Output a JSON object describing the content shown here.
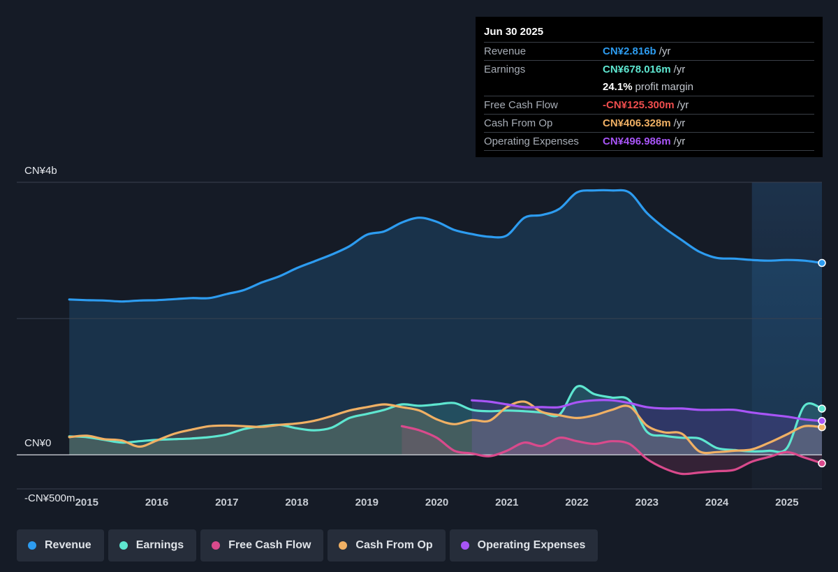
{
  "tooltip": {
    "date": "Jun 30 2025",
    "rows": [
      {
        "label": "Revenue",
        "value": "CN¥2.816b",
        "unit": "/yr",
        "color": "#2d9cf0"
      },
      {
        "label": "Earnings",
        "value": "CN¥678.016m",
        "unit": "/yr",
        "color": "#5ee6d0"
      },
      {
        "label": "",
        "value": "24.1%",
        "unit": "profit margin",
        "color": "#ffffff"
      },
      {
        "label": "Free Cash Flow",
        "value": "-CN¥125.300m",
        "unit": "/yr",
        "color": "#ef4d4d"
      },
      {
        "label": "Cash From Op",
        "value": "CN¥406.328m",
        "unit": "/yr",
        "color": "#f0b064"
      },
      {
        "label": "Operating Expenses",
        "value": "CN¥496.986m",
        "unit": "/yr",
        "color": "#a855f7"
      }
    ]
  },
  "legend": [
    {
      "label": "Revenue",
      "color": "#2d9cf0"
    },
    {
      "label": "Earnings",
      "color": "#5ee6d0"
    },
    {
      "label": "Free Cash Flow",
      "color": "#d94a8c"
    },
    {
      "label": "Cash From Op",
      "color": "#f0b064"
    },
    {
      "label": "Operating Expenses",
      "color": "#a855f7"
    }
  ],
  "chart_data": {
    "type": "line",
    "title": "",
    "xlabel": "",
    "ylabel": "",
    "y_tick_labels": [
      "CN¥4b",
      "CN¥0",
      "-CN¥500m"
    ],
    "ylim": [
      -500,
      4000
    ],
    "xlim": [
      2014.0,
      2025.5
    ],
    "x_ticks": [
      2015,
      2016,
      2017,
      2018,
      2019,
      2020,
      2021,
      2022,
      2023,
      2024,
      2025
    ],
    "highlight_from": 2024.5,
    "grid": true,
    "units": "CN¥ millions",
    "series": [
      {
        "name": "Revenue",
        "color": "#2d9cf0",
        "area": true,
        "points": [
          [
            2014.75,
            2280
          ],
          [
            2015,
            2270
          ],
          [
            2015.25,
            2265
          ],
          [
            2015.5,
            2250
          ],
          [
            2015.75,
            2265
          ],
          [
            2016,
            2270
          ],
          [
            2016.25,
            2285
          ],
          [
            2016.5,
            2300
          ],
          [
            2016.75,
            2300
          ],
          [
            2017,
            2360
          ],
          [
            2017.25,
            2420
          ],
          [
            2017.5,
            2530
          ],
          [
            2017.75,
            2620
          ],
          [
            2018,
            2740
          ],
          [
            2018.25,
            2840
          ],
          [
            2018.5,
            2940
          ],
          [
            2018.75,
            3060
          ],
          [
            2019,
            3230
          ],
          [
            2019.25,
            3280
          ],
          [
            2019.5,
            3410
          ],
          [
            2019.75,
            3480
          ],
          [
            2020,
            3420
          ],
          [
            2020.25,
            3300
          ],
          [
            2020.5,
            3240
          ],
          [
            2020.75,
            3200
          ],
          [
            2021,
            3220
          ],
          [
            2021.25,
            3480
          ],
          [
            2021.5,
            3520
          ],
          [
            2021.75,
            3610
          ],
          [
            2022,
            3850
          ],
          [
            2022.25,
            3880
          ],
          [
            2022.5,
            3880
          ],
          [
            2022.75,
            3850
          ],
          [
            2023,
            3550
          ],
          [
            2023.25,
            3330
          ],
          [
            2023.5,
            3150
          ],
          [
            2023.75,
            2980
          ],
          [
            2024,
            2890
          ],
          [
            2024.25,
            2880
          ],
          [
            2024.5,
            2860
          ],
          [
            2024.75,
            2850
          ],
          [
            2025,
            2860
          ],
          [
            2025.25,
            2850
          ],
          [
            2025.5,
            2816
          ]
        ]
      },
      {
        "name": "Earnings",
        "color": "#5ee6d0",
        "area": true,
        "points": [
          [
            2014.75,
            270
          ],
          [
            2015,
            260
          ],
          [
            2015.25,
            220
          ],
          [
            2015.5,
            180
          ],
          [
            2015.75,
            200
          ],
          [
            2016,
            220
          ],
          [
            2016.25,
            230
          ],
          [
            2016.5,
            240
          ],
          [
            2016.75,
            260
          ],
          [
            2017,
            300
          ],
          [
            2017.25,
            380
          ],
          [
            2017.5,
            420
          ],
          [
            2017.75,
            440
          ],
          [
            2018,
            390
          ],
          [
            2018.25,
            360
          ],
          [
            2018.5,
            400
          ],
          [
            2018.75,
            540
          ],
          [
            2019,
            600
          ],
          [
            2019.25,
            660
          ],
          [
            2019.5,
            740
          ],
          [
            2019.75,
            720
          ],
          [
            2020,
            740
          ],
          [
            2020.25,
            760
          ],
          [
            2020.5,
            660
          ],
          [
            2020.75,
            640
          ],
          [
            2021,
            650
          ],
          [
            2021.25,
            640
          ],
          [
            2021.5,
            620
          ],
          [
            2021.75,
            590
          ],
          [
            2022,
            1000
          ],
          [
            2022.25,
            890
          ],
          [
            2022.5,
            840
          ],
          [
            2022.75,
            800
          ],
          [
            2023,
            340
          ],
          [
            2023.25,
            280
          ],
          [
            2023.5,
            250
          ],
          [
            2023.75,
            240
          ],
          [
            2024,
            100
          ],
          [
            2024.25,
            70
          ],
          [
            2024.5,
            50
          ],
          [
            2024.75,
            60
          ],
          [
            2025,
            100
          ],
          [
            2025.25,
            720
          ],
          [
            2025.5,
            678
          ]
        ]
      },
      {
        "name": "Free Cash Flow",
        "color": "#d94a8c",
        "area": true,
        "points": [
          [
            2019.5,
            420
          ],
          [
            2019.75,
            360
          ],
          [
            2020,
            250
          ],
          [
            2020.25,
            60
          ],
          [
            2020.5,
            20
          ],
          [
            2020.75,
            -20
          ],
          [
            2021,
            60
          ],
          [
            2021.25,
            180
          ],
          [
            2021.5,
            130
          ],
          [
            2021.75,
            250
          ],
          [
            2022,
            200
          ],
          [
            2022.25,
            160
          ],
          [
            2022.5,
            200
          ],
          [
            2022.75,
            160
          ],
          [
            2023,
            -60
          ],
          [
            2023.25,
            -200
          ],
          [
            2023.5,
            -280
          ],
          [
            2023.75,
            -260
          ],
          [
            2024,
            -240
          ],
          [
            2024.25,
            -220
          ],
          [
            2024.5,
            -100
          ],
          [
            2024.75,
            -30
          ],
          [
            2025,
            40
          ],
          [
            2025.25,
            -40
          ],
          [
            2025.5,
            -125
          ]
        ]
      },
      {
        "name": "Cash From Op",
        "color": "#f0b064",
        "area": true,
        "points": [
          [
            2014.75,
            260
          ],
          [
            2015,
            280
          ],
          [
            2015.25,
            230
          ],
          [
            2015.5,
            210
          ],
          [
            2015.75,
            120
          ],
          [
            2016,
            210
          ],
          [
            2016.25,
            310
          ],
          [
            2016.5,
            370
          ],
          [
            2016.75,
            420
          ],
          [
            2017,
            430
          ],
          [
            2017.25,
            420
          ],
          [
            2017.5,
            410
          ],
          [
            2017.75,
            440
          ],
          [
            2018,
            460
          ],
          [
            2018.25,
            500
          ],
          [
            2018.5,
            570
          ],
          [
            2018.75,
            650
          ],
          [
            2019,
            700
          ],
          [
            2019.25,
            740
          ],
          [
            2019.5,
            700
          ],
          [
            2019.75,
            650
          ],
          [
            2020,
            520
          ],
          [
            2020.25,
            450
          ],
          [
            2020.5,
            510
          ],
          [
            2020.75,
            500
          ],
          [
            2021,
            700
          ],
          [
            2021.25,
            780
          ],
          [
            2021.5,
            630
          ],
          [
            2021.75,
            580
          ],
          [
            2022,
            540
          ],
          [
            2022.25,
            580
          ],
          [
            2022.5,
            660
          ],
          [
            2022.75,
            710
          ],
          [
            2023,
            430
          ],
          [
            2023.25,
            330
          ],
          [
            2023.5,
            310
          ],
          [
            2023.75,
            50
          ],
          [
            2024,
            40
          ],
          [
            2024.25,
            60
          ],
          [
            2024.5,
            80
          ],
          [
            2024.75,
            180
          ],
          [
            2025,
            300
          ],
          [
            2025.25,
            420
          ],
          [
            2025.5,
            406
          ]
        ]
      },
      {
        "name": "Operating Expenses",
        "color": "#a855f7",
        "area": true,
        "points": [
          [
            2020.5,
            800
          ],
          [
            2020.75,
            780
          ],
          [
            2021,
            740
          ],
          [
            2021.25,
            700
          ],
          [
            2021.5,
            700
          ],
          [
            2021.75,
            700
          ],
          [
            2022,
            770
          ],
          [
            2022.25,
            800
          ],
          [
            2022.5,
            800
          ],
          [
            2022.75,
            760
          ],
          [
            2023,
            700
          ],
          [
            2023.25,
            680
          ],
          [
            2023.5,
            680
          ],
          [
            2023.75,
            660
          ],
          [
            2024,
            660
          ],
          [
            2024.25,
            660
          ],
          [
            2024.5,
            620
          ],
          [
            2024.75,
            590
          ],
          [
            2025,
            560
          ],
          [
            2025.25,
            520
          ],
          [
            2025.5,
            497
          ]
        ]
      }
    ]
  }
}
